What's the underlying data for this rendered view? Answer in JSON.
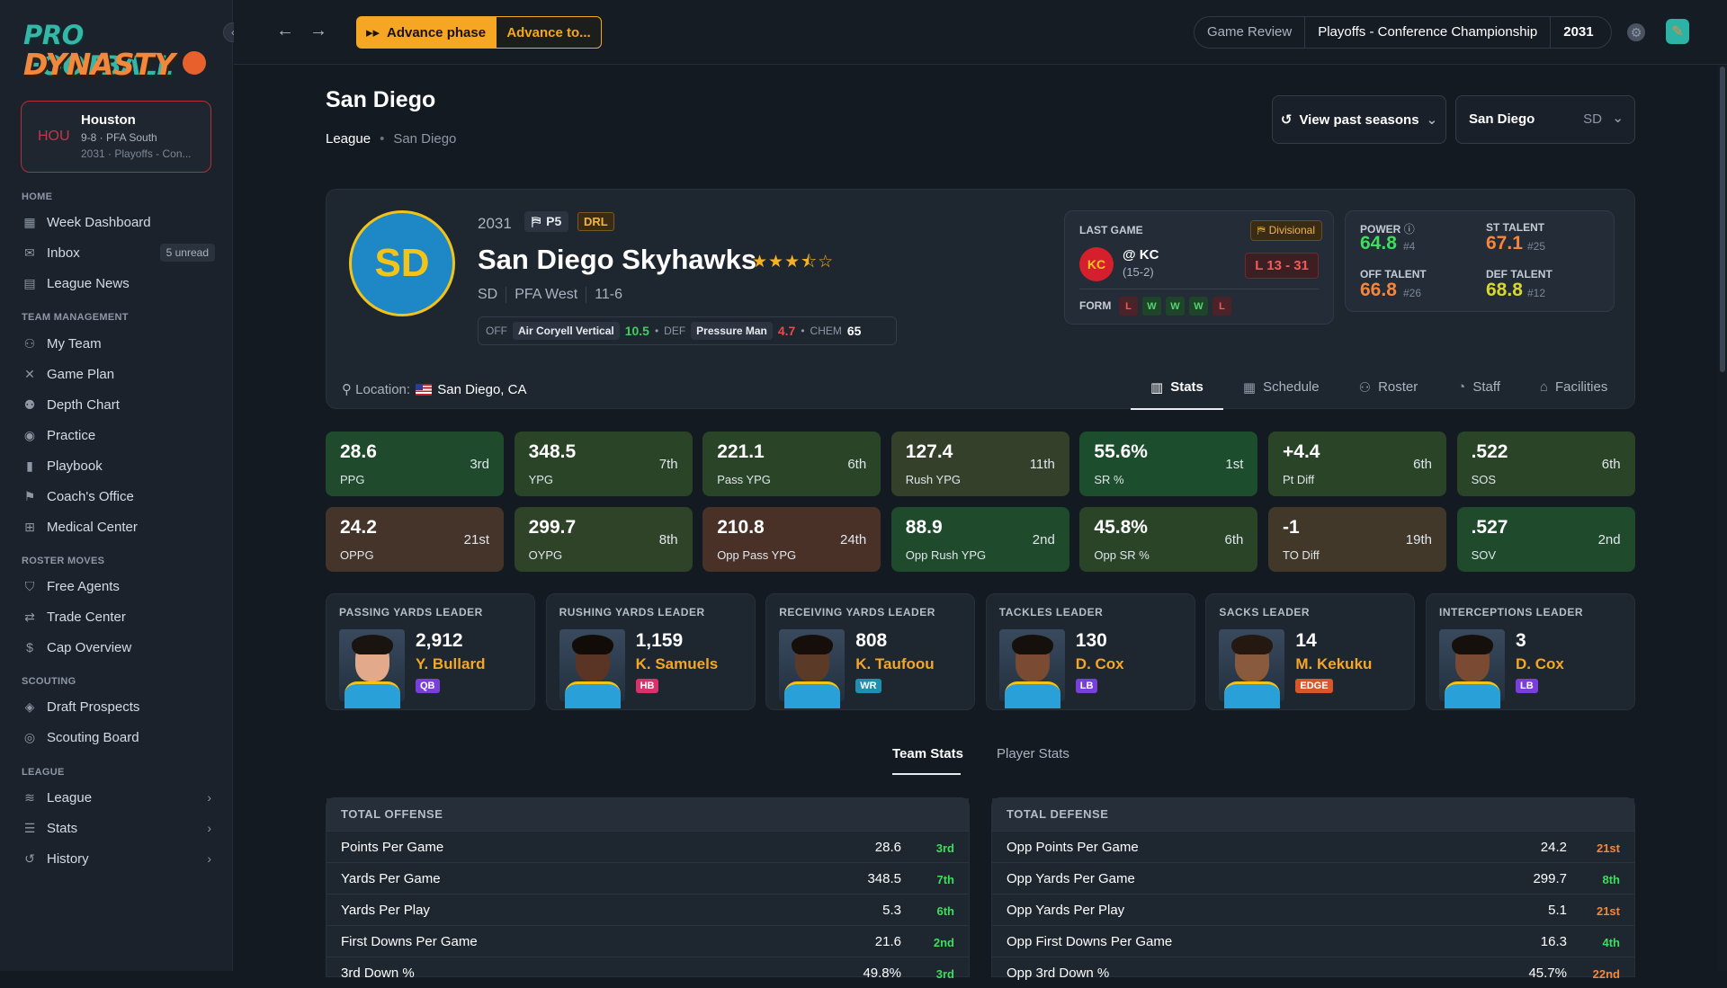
{
  "logo": {
    "line1": "PRO FOOTBALL",
    "line2": "DYNASTY"
  },
  "sidebar": {
    "team_card": {
      "abbr": "HOU",
      "name": "Houston",
      "record": "9-8 · PFA South",
      "phase": "2031 · Playoffs - Con..."
    },
    "sections": {
      "home": "HOME",
      "team_management": "TEAM MANAGEMENT",
      "roster_moves": "ROSTER MOVES",
      "scouting": "SCOUTING",
      "league": "LEAGUE"
    },
    "items": {
      "week_dashboard": "Week Dashboard",
      "inbox": "Inbox",
      "inbox_badge": "5 unread",
      "league_news": "League News",
      "my_team": "My Team",
      "game_plan": "Game Plan",
      "depth_chart": "Depth Chart",
      "practice": "Practice",
      "playbook": "Playbook",
      "coachs_office": "Coach's Office",
      "medical_center": "Medical Center",
      "free_agents": "Free Agents",
      "trade_center": "Trade Center",
      "cap_overview": "Cap Overview",
      "draft_prospects": "Draft Prospects",
      "scouting_board": "Scouting Board",
      "league": "League",
      "stats": "Stats",
      "history": "History"
    }
  },
  "topbar": {
    "advance_phase": "Advance phase",
    "advance_to": "Advance to...",
    "game_review": "Game Review",
    "phase": "Playoffs - Conference Championship",
    "year": "2031"
  },
  "page": {
    "title": "San Diego",
    "breadcrumb_root": "League",
    "breadcrumb_current": "San Diego",
    "view_past": "View past seasons",
    "team_select": "San Diego",
    "team_select_abbr": "SD"
  },
  "hero": {
    "logo": "SD",
    "year": "2031",
    "conference_tag": "P5",
    "tier_tag": "DRL",
    "team_name": "San Diego Skyhawks",
    "stars": "★★★⯪☆",
    "abbr": "SD",
    "division": "PFA West",
    "record": "11-6",
    "off_label": "OFF",
    "off_scheme": "Air Coryell Vertical",
    "off_value": "10.5",
    "def_label": "DEF",
    "def_scheme": "Pressure Man",
    "def_value": "4.7",
    "chem_label": "CHEM",
    "chem_value": "65",
    "location_label": "Location:",
    "location": "San Diego, CA"
  },
  "last_game": {
    "label": "LAST GAME",
    "round": "Divisional",
    "opp_logo": "KC",
    "opponent": "@ KC",
    "opp_record": "(15-2)",
    "score": "L 13 - 31",
    "form_label": "FORM",
    "form": [
      "L",
      "W",
      "W",
      "W",
      "L"
    ]
  },
  "power": {
    "power_label": "POWER",
    "power_value": "64.8",
    "power_rank": "#4",
    "st_label": "ST TALENT",
    "st_value": "67.1",
    "st_rank": "#25",
    "off_label": "OFF TALENT",
    "off_value": "66.8",
    "off_rank": "#26",
    "def_label": "DEF TALENT",
    "def_value": "68.8",
    "def_rank": "#12",
    "colors": {
      "green": "#3fdc5e",
      "orange": "#f5863a",
      "yellow": "#d8d82c"
    }
  },
  "tabs": [
    "Stats",
    "Schedule",
    "Roster",
    "Staff",
    "Facilities"
  ],
  "stat_cards": [
    {
      "value": "28.6",
      "label": "PPG",
      "rank": "3rd",
      "color": "#1f4a2c"
    },
    {
      "value": "348.5",
      "label": "YPG",
      "rank": "7th",
      "color": "#2a4428"
    },
    {
      "value": "221.1",
      "label": "Pass YPG",
      "rank": "6th",
      "color": "#2a4428"
    },
    {
      "value": "127.4",
      "label": "Rush YPG",
      "rank": "11th",
      "color": "#34402a"
    },
    {
      "value": "55.6%",
      "label": "SR %",
      "rank": "1st",
      "color": "#1c4d2c"
    },
    {
      "value": "+4.4",
      "label": "Pt Diff",
      "rank": "6th",
      "color": "#2a4428"
    },
    {
      "value": ".522",
      "label": "SOS",
      "rank": "6th",
      "color": "#2a4428"
    },
    {
      "value": "24.2",
      "label": "OPPG",
      "rank": "21st",
      "color": "#44342a"
    },
    {
      "value": "299.7",
      "label": "OYPG",
      "rank": "8th",
      "color": "#2f4329"
    },
    {
      "value": "210.8",
      "label": "Opp Pass YPG",
      "rank": "24th",
      "color": "#4a3128"
    },
    {
      "value": "88.9",
      "label": "Opp Rush YPG",
      "rank": "2nd",
      "color": "#1f4a2c"
    },
    {
      "value": "45.8%",
      "label": "Opp SR %",
      "rank": "6th",
      "color": "#2a4428"
    },
    {
      "value": "-1",
      "label": "TO Diff",
      "rank": "19th",
      "color": "#42382a"
    },
    {
      "value": ".527",
      "label": "SOV",
      "rank": "2nd",
      "color": "#1f4a2c"
    }
  ],
  "leaders": [
    {
      "title": "PASSING YARDS LEADER",
      "value": "2,912",
      "name": "Y. Bullard",
      "pos": "QB",
      "pos_color": "#7b3fd9",
      "skin": "#e2a98a",
      "hair": "#1a1410"
    },
    {
      "title": "RUSHING YARDS LEADER",
      "value": "1,159",
      "name": "K. Samuels",
      "pos": "HB",
      "pos_color": "#d6336c",
      "skin": "#5a3424",
      "hair": "#120c08"
    },
    {
      "title": "RECEIVING YARDS LEADER",
      "value": "808",
      "name": "K. Taufoou",
      "pos": "WR",
      "pos_color": "#1f8fb0",
      "skin": "#5c3a28",
      "hair": "#150e0a"
    },
    {
      "title": "TACKLES LEADER",
      "value": "130",
      "name": "D. Cox",
      "pos": "LB",
      "pos_color": "#7b3fd9",
      "skin": "#7a4a32",
      "hair": "#15100c"
    },
    {
      "title": "SACKS LEADER",
      "value": "14",
      "name": "M. Kekuku",
      "pos": "EDGE",
      "pos_color": "#d6572a",
      "skin": "#8a5a3c",
      "hair": "#241810"
    },
    {
      "title": "INTERCEPTIONS LEADER",
      "value": "3",
      "name": "D. Cox",
      "pos": "LB",
      "pos_color": "#7b3fd9",
      "skin": "#7a4a32",
      "hair": "#15100c"
    }
  ],
  "subtabs": {
    "team": "Team Stats",
    "player": "Player Stats"
  },
  "total_offense": {
    "title": "TOTAL OFFENSE",
    "rows": [
      {
        "name": "Points Per Game",
        "value": "28.6",
        "rank": "3rd",
        "color": "#3fdc5e"
      },
      {
        "name": "Yards Per Game",
        "value": "348.5",
        "rank": "7th",
        "color": "#3fdc5e"
      },
      {
        "name": "Yards Per Play",
        "value": "5.3",
        "rank": "6th",
        "color": "#3fdc5e"
      },
      {
        "name": "First Downs Per Game",
        "value": "21.6",
        "rank": "2nd",
        "color": "#3fdc5e"
      },
      {
        "name": "3rd Down %",
        "value": "49.8%",
        "rank": "3rd",
        "color": "#3fdc5e"
      }
    ]
  },
  "total_defense": {
    "title": "TOTAL DEFENSE",
    "rows": [
      {
        "name": "Opp Points Per Game",
        "value": "24.2",
        "rank": "21st",
        "color": "#f5863a"
      },
      {
        "name": "Opp Yards Per Game",
        "value": "299.7",
        "rank": "8th",
        "color": "#3fdc5e"
      },
      {
        "name": "Opp Yards Per Play",
        "value": "5.1",
        "rank": "21st",
        "color": "#f5863a"
      },
      {
        "name": "Opp First Downs Per Game",
        "value": "16.3",
        "rank": "4th",
        "color": "#3fdc5e"
      },
      {
        "name": "Opp 3rd Down %",
        "value": "45.7%",
        "rank": "22nd",
        "color": "#f5863a"
      }
    ]
  }
}
